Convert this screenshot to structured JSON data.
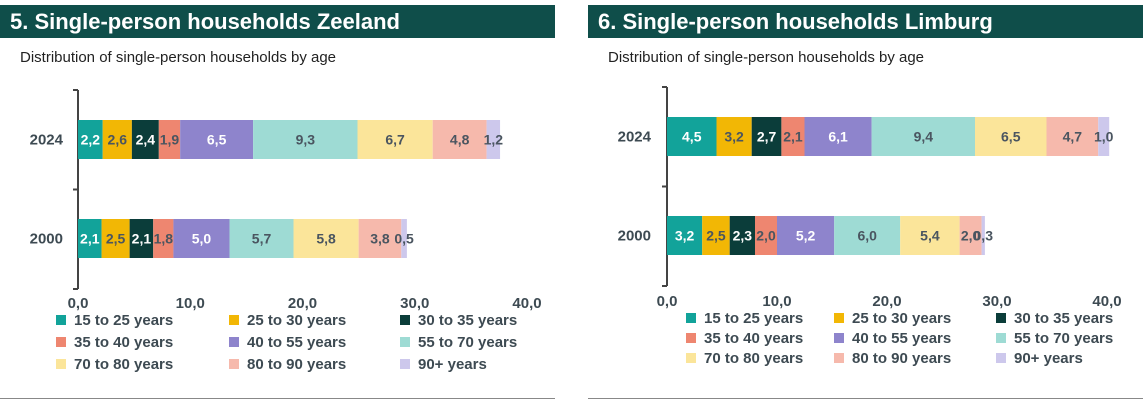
{
  "colors": {
    "header_bg": "#0f4e4a",
    "series": [
      "#12a39a",
      "#f2b705",
      "#0b3d3a",
      "#ee8670",
      "#8e84cc",
      "#9edbd4",
      "#fbe59a",
      "#f6b9ac",
      "#cdc8ec"
    ],
    "label_dark": "#ffffff",
    "label_light": "#4a5560"
  },
  "panels": [
    {
      "title": "5. Single-person households Zeeland",
      "subtitle": "Distribution of single-person households by age"
    },
    {
      "title": "6. Single-person households Limburg",
      "subtitle": "Distribution of single-person households by age"
    }
  ],
  "chart_data": [
    {
      "type": "bar",
      "orientation": "horizontal",
      "stacked": true,
      "title": "5. Single-person households Zeeland",
      "subtitle": "Distribution of single-person households by age",
      "categories": [
        "2024",
        "2000"
      ],
      "xlim": [
        0,
        40
      ],
      "xticks": [
        "0,0",
        "10,0",
        "20,0",
        "30,0",
        "40,0"
      ],
      "legend_position": "bottom",
      "series": [
        {
          "name": "15 to 25 years",
          "values": [
            2.2,
            2.1
          ],
          "labels": [
            "2,2",
            "2,1"
          ]
        },
        {
          "name": "25 to 30 years",
          "values": [
            2.6,
            2.5
          ],
          "labels": [
            "2,6",
            "2,5"
          ]
        },
        {
          "name": "30 to 35 years",
          "values": [
            2.4,
            2.1
          ],
          "labels": [
            "2,4",
            "2,1"
          ]
        },
        {
          "name": "35 to 40 years",
          "values": [
            1.9,
            1.8
          ],
          "labels": [
            "1,9",
            "1,8"
          ]
        },
        {
          "name": "40 to 55 years",
          "values": [
            6.5,
            5.0
          ],
          "labels": [
            "6,5",
            "5,0"
          ]
        },
        {
          "name": "55 to 70 years",
          "values": [
            9.3,
            5.7
          ],
          "labels": [
            "9,3",
            "5,7"
          ]
        },
        {
          "name": "70 to 80 years",
          "values": [
            6.7,
            5.8
          ],
          "labels": [
            "6,7",
            "5,8"
          ]
        },
        {
          "name": "80 to 90 years",
          "values": [
            4.8,
            3.8
          ],
          "labels": [
            "4,8",
            "3,8"
          ]
        },
        {
          "name": "90+ years",
          "values": [
            1.2,
            0.5
          ],
          "labels": [
            "1,2",
            "0,5"
          ]
        }
      ]
    },
    {
      "type": "bar",
      "orientation": "horizontal",
      "stacked": true,
      "title": "6. Single-person households Limburg",
      "subtitle": "Distribution of single-person households by age",
      "categories": [
        "2024",
        "2000"
      ],
      "xlim": [
        0,
        40
      ],
      "xticks": [
        "0,0",
        "10,0",
        "20,0",
        "30,0",
        "40,0"
      ],
      "legend_position": "bottom",
      "series": [
        {
          "name": "15 to 25 years",
          "values": [
            4.5,
            3.2
          ],
          "labels": [
            "4,5",
            "3,2"
          ]
        },
        {
          "name": "25 to 30 years",
          "values": [
            3.2,
            2.5
          ],
          "labels": [
            "3,2",
            "2,5"
          ]
        },
        {
          "name": "30 to 35 years",
          "values": [
            2.7,
            2.3
          ],
          "labels": [
            "2,7",
            "2,3"
          ]
        },
        {
          "name": "35 to 40 years",
          "values": [
            2.1,
            2.0
          ],
          "labels": [
            "2,1",
            "2,0"
          ]
        },
        {
          "name": "40 to 55 years",
          "values": [
            6.1,
            5.2
          ],
          "labels": [
            "6,1",
            "5,2"
          ]
        },
        {
          "name": "55 to 70 years",
          "values": [
            9.4,
            6.0
          ],
          "labels": [
            "9,4",
            "6,0"
          ]
        },
        {
          "name": "70 to 80 years",
          "values": [
            6.5,
            5.4
          ],
          "labels": [
            "6,5",
            "5,4"
          ]
        },
        {
          "name": "80 to 90 years",
          "values": [
            4.7,
            2.0
          ],
          "labels": [
            "4,7",
            "2,0"
          ]
        },
        {
          "name": "90+ years",
          "values": [
            1.0,
            0.3
          ],
          "labels": [
            "1,0",
            "0,3"
          ]
        }
      ]
    }
  ]
}
